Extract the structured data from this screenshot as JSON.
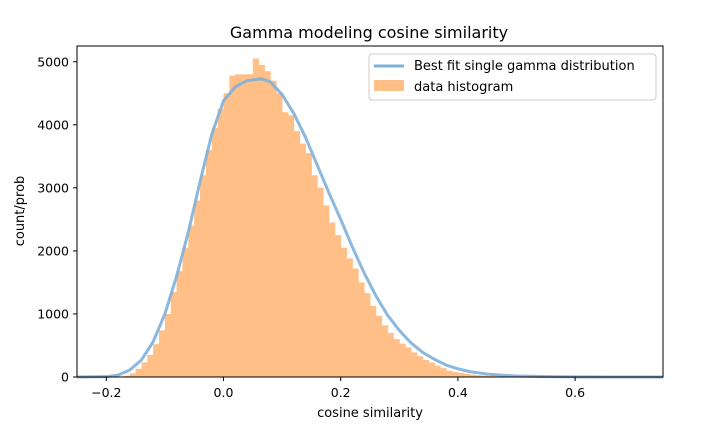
{
  "chart_data": {
    "type": "bar",
    "title": "Gamma modeling cosine similarity",
    "xlabel": "cosine similarity",
    "ylabel": "count/prob",
    "xlim": [
      -0.25,
      0.75
    ],
    "ylim": [
      0,
      5250
    ],
    "xticks": [
      -0.2,
      0.0,
      0.2,
      0.4,
      0.6
    ],
    "xtick_labels": [
      "−0.2",
      "0.0",
      "0.2",
      "0.4",
      "0.6"
    ],
    "yticks": [
      0,
      1000,
      2000,
      3000,
      4000,
      5000
    ],
    "ytick_labels": [
      "0",
      "1000",
      "2000",
      "3000",
      "4000",
      "5000"
    ],
    "legend_position": "top-right",
    "legend": [
      {
        "label": "Best fit single gamma distribution",
        "kind": "line",
        "color": "#7fb0d9"
      },
      {
        "label": "data histogram",
        "kind": "patch",
        "color": "#ffbf87"
      }
    ],
    "histogram": {
      "name": "data histogram",
      "color": "#ffbf87",
      "bin_width": 0.01,
      "bin_starts": [
        -0.17,
        -0.16,
        -0.15,
        -0.14,
        -0.13,
        -0.12,
        -0.11,
        -0.1,
        -0.09,
        -0.08,
        -0.07,
        -0.06,
        -0.05,
        -0.04,
        -0.03,
        -0.02,
        -0.01,
        0.0,
        0.01,
        0.02,
        0.03,
        0.04,
        0.05,
        0.06,
        0.07,
        0.08,
        0.09,
        0.1,
        0.11,
        0.12,
        0.13,
        0.14,
        0.15,
        0.16,
        0.17,
        0.18,
        0.19,
        0.2,
        0.21,
        0.22,
        0.23,
        0.24,
        0.25,
        0.26,
        0.27,
        0.28,
        0.29,
        0.3,
        0.31,
        0.32,
        0.33,
        0.34,
        0.35,
        0.36,
        0.37,
        0.38,
        0.39,
        0.4,
        0.41,
        0.42,
        0.43,
        0.44,
        0.45,
        0.46,
        0.47,
        0.48,
        0.49,
        0.5,
        0.51,
        0.52,
        0.53,
        0.54,
        0.55
      ],
      "counts": [
        20,
        60,
        130,
        230,
        350,
        520,
        740,
        1000,
        1350,
        1680,
        2050,
        2400,
        2800,
        3200,
        3600,
        3950,
        4250,
        4500,
        4780,
        4800,
        4800,
        4800,
        5050,
        4950,
        4850,
        4700,
        4500,
        4200,
        4150,
        3900,
        3700,
        3550,
        3200,
        3000,
        2720,
        2450,
        2250,
        2050,
        1880,
        1720,
        1500,
        1330,
        1130,
        970,
        820,
        700,
        600,
        530,
        470,
        390,
        330,
        270,
        230,
        180,
        140,
        100,
        80,
        65,
        50,
        38,
        28,
        20,
        15,
        11,
        8,
        6,
        4,
        3,
        2,
        2,
        1,
        1,
        1
      ]
    },
    "fit_curve": {
      "name": "Best fit single gamma distribution",
      "color": "#7fb0d9",
      "x": [
        -0.25,
        -0.2,
        -0.18,
        -0.16,
        -0.14,
        -0.12,
        -0.1,
        -0.08,
        -0.06,
        -0.04,
        -0.02,
        0.0,
        0.02,
        0.04,
        0.065,
        0.08,
        0.1,
        0.12,
        0.14,
        0.16,
        0.18,
        0.2,
        0.22,
        0.24,
        0.26,
        0.28,
        0.3,
        0.32,
        0.34,
        0.36,
        0.38,
        0.4,
        0.42,
        0.45,
        0.5,
        0.55,
        0.6,
        0.65,
        0.7,
        0.75
      ],
      "y": [
        0,
        5,
        30,
        110,
        270,
        560,
        1000,
        1600,
        2300,
        3100,
        3850,
        4380,
        4600,
        4700,
        4730,
        4680,
        4480,
        4180,
        3800,
        3360,
        2920,
        2500,
        2060,
        1650,
        1290,
        980,
        740,
        540,
        390,
        280,
        190,
        130,
        85,
        45,
        15,
        5,
        2,
        0,
        0,
        0
      ]
    }
  }
}
